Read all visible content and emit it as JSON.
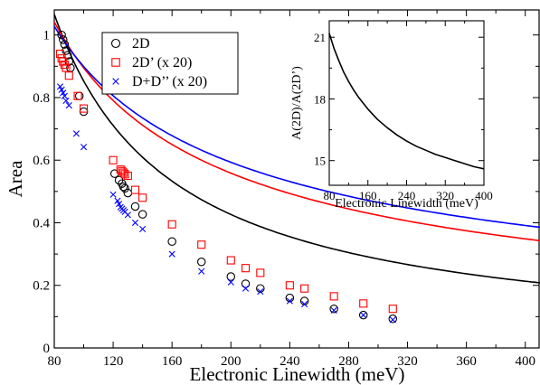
{
  "chart_data": [
    {
      "type": "scatter",
      "title": "",
      "xlabel": "Electronic Linewidth (meV)",
      "ylabel": "Area",
      "xlim": [
        80,
        410
      ],
      "ylim": [
        0,
        1.08
      ],
      "xticks": [
        80,
        120,
        160,
        200,
        240,
        280,
        320,
        360,
        400
      ],
      "yticks": [
        0,
        0.2,
        0.4,
        0.6,
        0.8,
        1
      ],
      "xtick_labels": [
        "80",
        "120",
        "160",
        "200",
        "240",
        "280",
        "320",
        "360",
        "400"
      ],
      "ytick_labels": [
        "0",
        "0.2",
        "0.4",
        "0.6",
        "0.8",
        "1"
      ],
      "grid": false,
      "legend_position": "top-left",
      "series": [
        {
          "name": "2D",
          "marker": "circle",
          "color": "#000000",
          "fit_curve": {
            "coefficient": 85.3,
            "exponent": 1.0
          },
          "points": [
            {
              "x": 85,
              "y": 1.0
            },
            {
              "x": 86,
              "y": 0.985
            },
            {
              "x": 87,
              "y": 0.97
            },
            {
              "x": 88,
              "y": 0.95
            },
            {
              "x": 89,
              "y": 0.935
            },
            {
              "x": 90,
              "y": 0.915
            },
            {
              "x": 91,
              "y": 0.895
            },
            {
              "x": 97,
              "y": 0.805
            },
            {
              "x": 100,
              "y": 0.755
            },
            {
              "x": 121,
              "y": 0.557
            },
            {
              "x": 124,
              "y": 0.536
            },
            {
              "x": 126,
              "y": 0.525
            },
            {
              "x": 127,
              "y": 0.515
            },
            {
              "x": 128,
              "y": 0.51
            },
            {
              "x": 130,
              "y": 0.495
            },
            {
              "x": 135,
              "y": 0.452
            },
            {
              "x": 140,
              "y": 0.427
            },
            {
              "x": 160,
              "y": 0.34
            },
            {
              "x": 180,
              "y": 0.275
            },
            {
              "x": 200,
              "y": 0.228
            },
            {
              "x": 210,
              "y": 0.205
            },
            {
              "x": 220,
              "y": 0.19
            },
            {
              "x": 240,
              "y": 0.16
            },
            {
              "x": 250,
              "y": 0.15
            },
            {
              "x": 270,
              "y": 0.125
            },
            {
              "x": 290,
              "y": 0.105
            },
            {
              "x": 310,
              "y": 0.093
            }
          ]
        },
        {
          "name": "2D’ (x 20)",
          "marker": "square",
          "color": "#ff0000",
          "fit_curve": {
            "coefficient": 20.5,
            "exponent": 0.68
          },
          "points": [
            {
              "x": 84,
              "y": 0.94
            },
            {
              "x": 85,
              "y": 0.925
            },
            {
              "x": 86,
              "y": 0.915
            },
            {
              "x": 87,
              "y": 0.905
            },
            {
              "x": 88,
              "y": 0.895
            },
            {
              "x": 90,
              "y": 0.87
            },
            {
              "x": 96,
              "y": 0.805
            },
            {
              "x": 100,
              "y": 0.765
            },
            {
              "x": 120,
              "y": 0.6
            },
            {
              "x": 125,
              "y": 0.57
            },
            {
              "x": 126,
              "y": 0.565
            },
            {
              "x": 127,
              "y": 0.56
            },
            {
              "x": 128,
              "y": 0.555
            },
            {
              "x": 130,
              "y": 0.55
            },
            {
              "x": 135,
              "y": 0.505
            },
            {
              "x": 140,
              "y": 0.48
            },
            {
              "x": 160,
              "y": 0.395
            },
            {
              "x": 180,
              "y": 0.33
            },
            {
              "x": 200,
              "y": 0.28
            },
            {
              "x": 210,
              "y": 0.255
            },
            {
              "x": 220,
              "y": 0.24
            },
            {
              "x": 240,
              "y": 0.2
            },
            {
              "x": 250,
              "y": 0.19
            },
            {
              "x": 270,
              "y": 0.165
            },
            {
              "x": 290,
              "y": 0.142
            },
            {
              "x": 310,
              "y": 0.125
            }
          ]
        },
        {
          "name": "D+D’’ (x 20)",
          "marker": "x",
          "color": "#0000ff",
          "fit_curve": {
            "coefficient": 14.25,
            "exponent": 0.6
          },
          "points": [
            {
              "x": 84,
              "y": 0.835
            },
            {
              "x": 85,
              "y": 0.825
            },
            {
              "x": 86,
              "y": 0.815
            },
            {
              "x": 87,
              "y": 0.805
            },
            {
              "x": 88,
              "y": 0.79
            },
            {
              "x": 90,
              "y": 0.775
            },
            {
              "x": 95,
              "y": 0.685
            },
            {
              "x": 100,
              "y": 0.642
            },
            {
              "x": 120,
              "y": 0.49
            },
            {
              "x": 123,
              "y": 0.47
            },
            {
              "x": 124,
              "y": 0.46
            },
            {
              "x": 125,
              "y": 0.45
            },
            {
              "x": 126,
              "y": 0.445
            },
            {
              "x": 127,
              "y": 0.44
            },
            {
              "x": 128,
              "y": 0.435
            },
            {
              "x": 130,
              "y": 0.425
            },
            {
              "x": 135,
              "y": 0.4
            },
            {
              "x": 140,
              "y": 0.38
            },
            {
              "x": 160,
              "y": 0.3
            },
            {
              "x": 180,
              "y": 0.245
            },
            {
              "x": 200,
              "y": 0.21
            },
            {
              "x": 210,
              "y": 0.19
            },
            {
              "x": 220,
              "y": 0.18
            },
            {
              "x": 240,
              "y": 0.15
            },
            {
              "x": 250,
              "y": 0.14
            },
            {
              "x": 270,
              "y": 0.12
            },
            {
              "x": 290,
              "y": 0.105
            },
            {
              "x": 310,
              "y": 0.09
            }
          ]
        }
      ]
    },
    {
      "type": "line",
      "title": "",
      "xlabel": "Electronic Linewidth (meV)",
      "ylabel": "A(2D)/A(2D’)",
      "xlim": [
        80,
        400
      ],
      "ylim": [
        13.8,
        21.8
      ],
      "xticks": [
        80,
        160,
        240,
        320,
        400
      ],
      "yticks": [
        15,
        18,
        21
      ],
      "xtick_labels": [
        "80",
        "160",
        "240",
        "320",
        "400"
      ],
      "ytick_labels": [
        "15",
        "18",
        "21"
      ],
      "grid": false,
      "legend_position": "none",
      "series": [
        {
          "color": "#000000",
          "x": [
            80,
            90,
            100,
            110,
            120,
            130,
            140,
            160,
            180,
            200,
            220,
            240,
            260,
            280,
            300,
            320,
            340,
            360,
            380,
            400
          ],
          "y": [
            21.2,
            20.45,
            19.85,
            19.3,
            18.85,
            18.45,
            18.1,
            17.5,
            17.0,
            16.6,
            16.25,
            15.95,
            15.7,
            15.5,
            15.3,
            15.15,
            15.0,
            14.85,
            14.7,
            14.6
          ]
        }
      ]
    }
  ]
}
